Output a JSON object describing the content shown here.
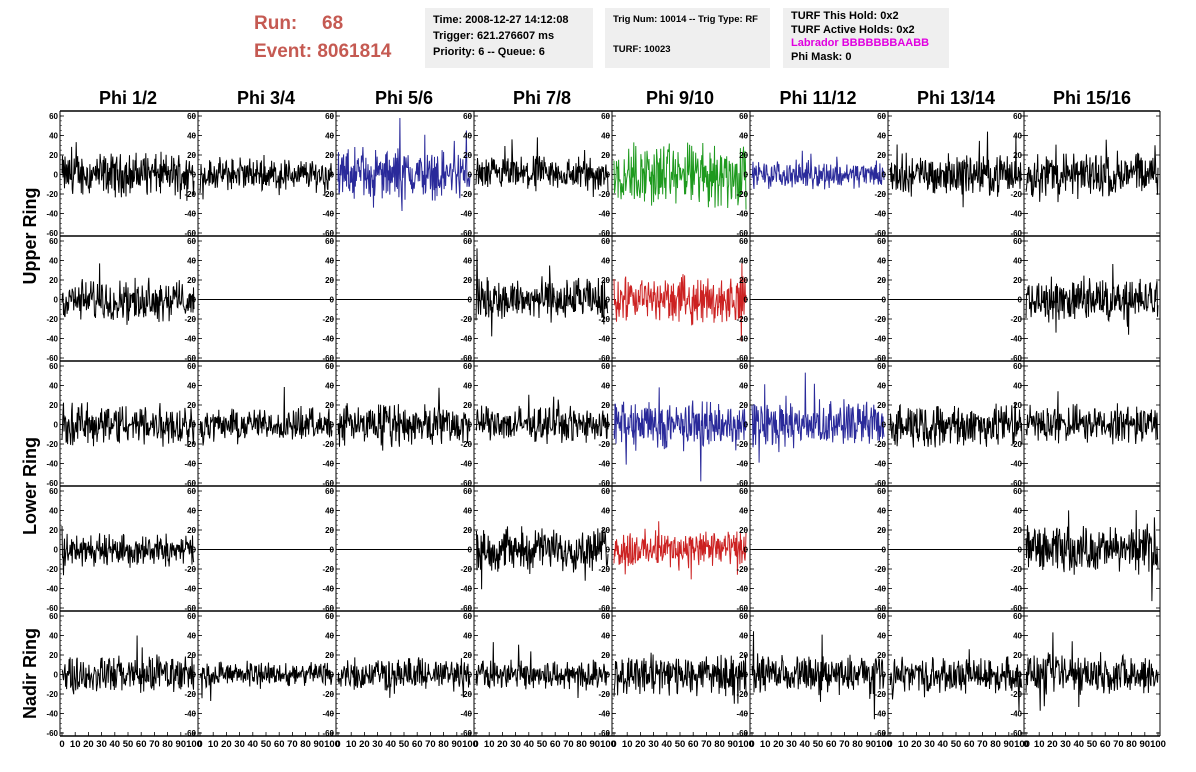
{
  "header": {
    "run_label": "Run:",
    "run_value": "68",
    "event_label": "Event:",
    "event_value": "8061814",
    "time": "Time: 2008-12-27 14:12:08",
    "trigger": "Trigger: 621.276607 ms",
    "priority": "Priority: 6 -- Queue: 6",
    "trig_num": "Trig Num: 10014 -- Trig Type: RF",
    "turf": "TURF: 10023",
    "turf_this_hold": "TURF This Hold: 0x2",
    "turf_active_holds": "TURF Active Holds: 0x2",
    "labrador": "Labrador BBBBBBBAABB",
    "phi_mask": "Phi Mask: 0"
  },
  "colors": {
    "header_red": "#c55a52",
    "panel_bg": "#efefef",
    "magenta": "#e000e0",
    "trace_black": "#000000",
    "trace_blue": "#2a2a9a",
    "trace_green": "#1e9a1e",
    "trace_red": "#cc2222"
  },
  "chart_data": {
    "type": "line",
    "columns": [
      "Phi 1/2",
      "Phi 3/4",
      "Phi 5/6",
      "Phi 7/8",
      "Phi 9/10",
      "Phi 11/12",
      "Phi 13/14",
      "Phi 15/16"
    ],
    "row_groups": [
      {
        "label": "Upper Ring",
        "rows": [
          0,
          1
        ]
      },
      {
        "label": "Lower Ring",
        "rows": [
          2,
          3
        ]
      },
      {
        "label": "Nadir Ring",
        "rows": [
          4
        ]
      }
    ],
    "xlim": [
      0,
      100
    ],
    "ylim": [
      -60,
      60
    ],
    "x_ticks": [
      "0",
      "10",
      "20",
      "30",
      "40",
      "50",
      "60",
      "70",
      "80",
      "90",
      "100"
    ],
    "y_ticks": [
      "60",
      "40",
      "20",
      "0",
      "-20",
      "-40",
      "-60"
    ],
    "traces": [
      [
        {
          "color": "black",
          "amp": 16
        },
        {
          "color": "black",
          "amp": 12
        },
        {
          "color": "blue",
          "amp": 18,
          "spike": 58
        },
        {
          "color": "black",
          "amp": 13
        },
        {
          "color": "green",
          "amp": 24
        },
        {
          "color": "blue",
          "amp": 10
        },
        {
          "color": "black",
          "amp": 15
        },
        {
          "color": "black",
          "amp": 17
        }
      ],
      [
        {
          "color": "black",
          "amp": 15
        },
        {
          "color": "flat",
          "amp": 0
        },
        {
          "color": "flat",
          "amp": 0
        },
        {
          "color": "black",
          "amp": 16
        },
        {
          "color": "red",
          "amp": 17
        },
        {
          "color": "flat",
          "amp": 0
        },
        {
          "color": "flat",
          "amp": 0
        },
        {
          "color": "black",
          "amp": 16
        }
      ],
      [
        {
          "color": "black",
          "amp": 16
        },
        {
          "color": "black",
          "amp": 12
        },
        {
          "color": "black",
          "amp": 15
        },
        {
          "color": "black",
          "amp": 13
        },
        {
          "color": "blue",
          "amp": 18
        },
        {
          "color": "blue",
          "amp": 17
        },
        {
          "color": "black",
          "amp": 16
        },
        {
          "color": "black",
          "amp": 14
        }
      ],
      [
        {
          "color": "black",
          "amp": 12
        },
        {
          "color": "flat",
          "amp": 0
        },
        {
          "color": "flat",
          "amp": 0
        },
        {
          "color": "black",
          "amp": 16
        },
        {
          "color": "red",
          "amp": 14
        },
        {
          "color": "flat",
          "amp": 0
        },
        {
          "color": "flat",
          "amp": 0
        },
        {
          "color": "black",
          "amp": 17
        }
      ],
      [
        {
          "color": "black",
          "amp": 14
        },
        {
          "color": "black",
          "amp": 9
        },
        {
          "color": "black",
          "amp": 12
        },
        {
          "color": "black",
          "amp": 11
        },
        {
          "color": "black",
          "amp": 15
        },
        {
          "color": "black",
          "amp": 14
        },
        {
          "color": "black",
          "amp": 13
        },
        {
          "color": "black",
          "amp": 15
        }
      ]
    ]
  }
}
